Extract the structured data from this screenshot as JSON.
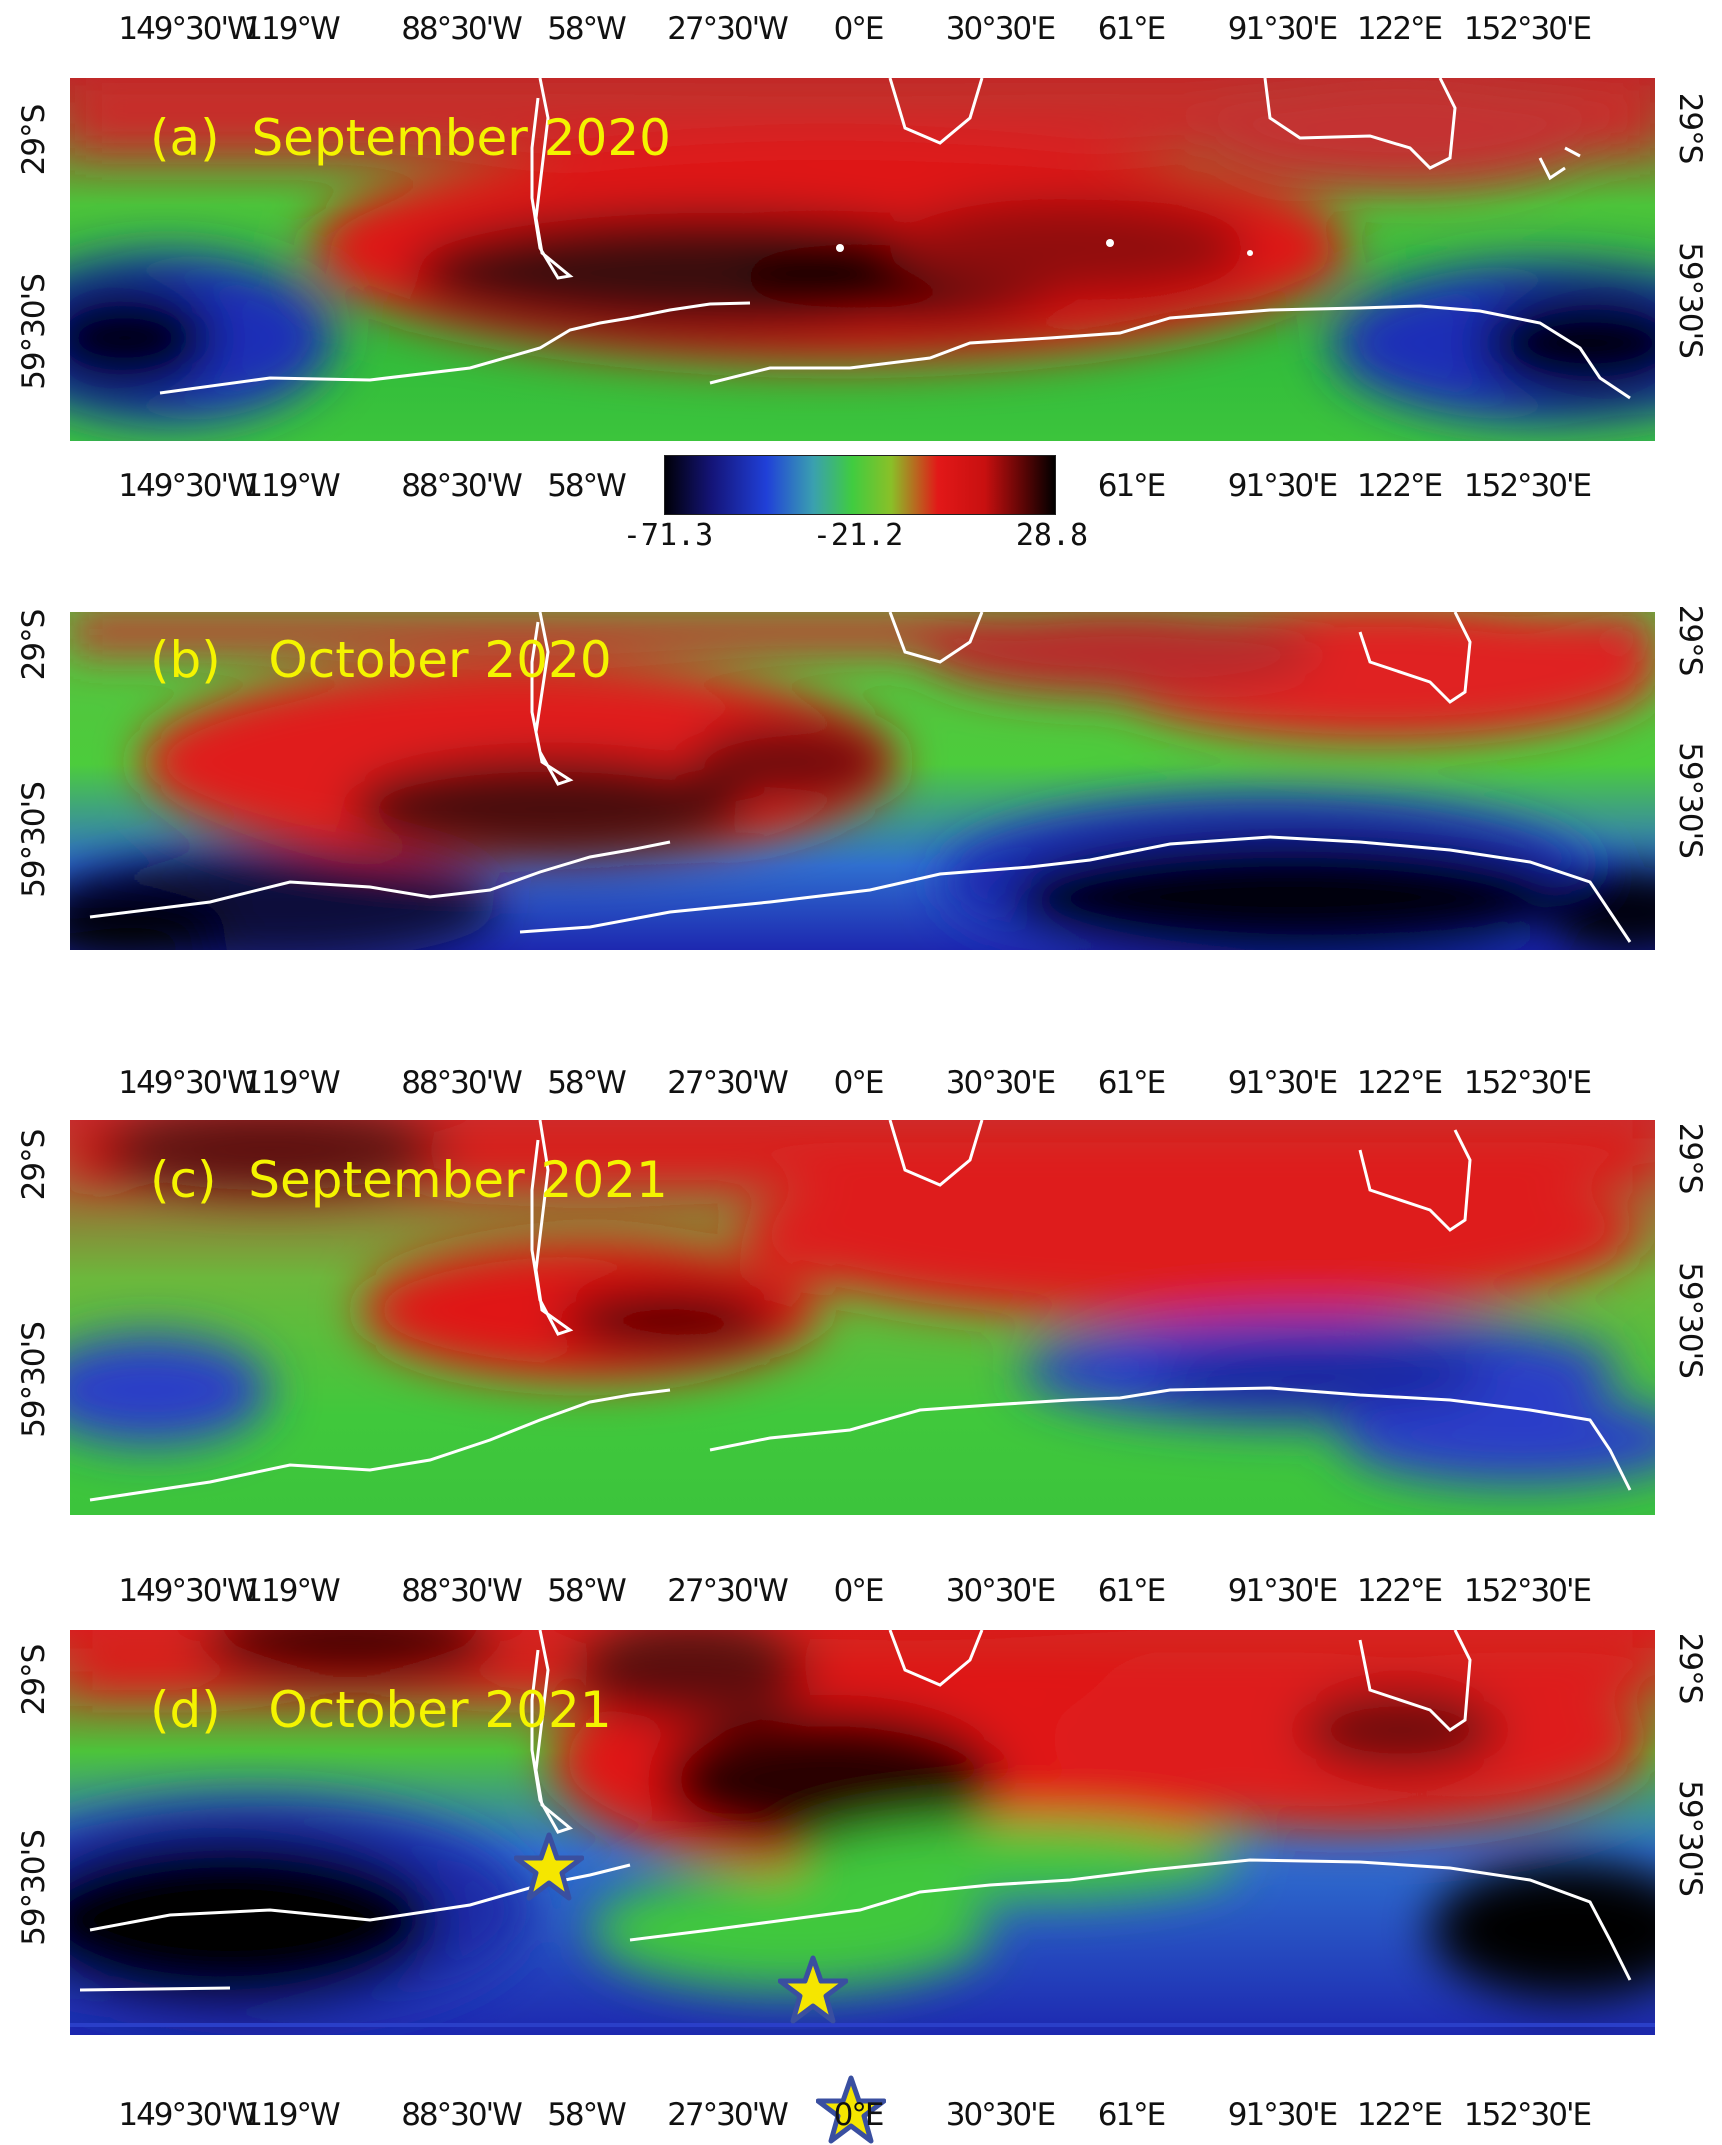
{
  "longitude_labels": [
    "149°30'W",
    "119°W",
    "88°30'W",
    "58°W",
    "27°30'W",
    "0°E",
    "30°30'E",
    "61°E",
    "91°30'E",
    "122°E",
    "152°30'E"
  ],
  "colorbar_longitude_labels_left": [
    "149°30'W",
    "119°W",
    "88°30'W",
    "58°W"
  ],
  "colorbar_longitude_labels_right": [
    "61°E",
    "91°30'E",
    "122°E",
    "152°30'E"
  ],
  "latitude_labels": {
    "upper": "29°S",
    "lower": "59°30'S"
  },
  "colorbar": {
    "ticks": [
      "-71.3",
      "-21.2",
      "28.8"
    ],
    "colors": [
      "#000008",
      "#141478",
      "#2040d8",
      "#40cc40",
      "#e21818",
      "#5a0505",
      "#000000"
    ]
  },
  "panels": [
    {
      "id": "a",
      "label": "(a)  September 2020"
    },
    {
      "id": "b",
      "label": "(b)   October 2020"
    },
    {
      "id": "c",
      "label": "(c)  September 2021"
    },
    {
      "id": "d",
      "label": "(d)   October 2021"
    }
  ],
  "markers": {
    "icon": "star-icon",
    "fill": "#f5e600",
    "outline": "#3a4fa0",
    "count": 3
  },
  "colors": {
    "coastline": "#ffffff",
    "label_text": "#f4f400"
  }
}
